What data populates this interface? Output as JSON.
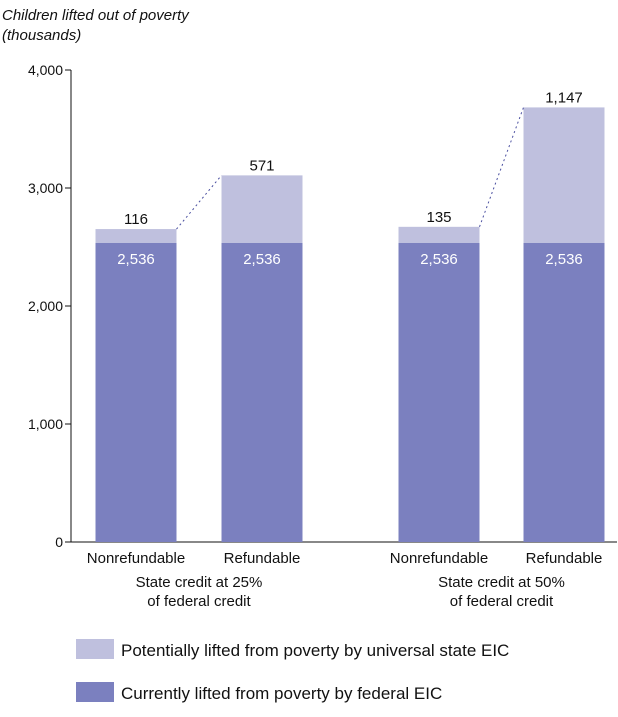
{
  "chart_data": {
    "type": "bar",
    "stacked": true,
    "ylabel": "Children lifted out of poverty\n(thousands)",
    "ylim": [
      0,
      4000
    ],
    "yticks": [
      0,
      1000,
      2000,
      3000,
      4000
    ],
    "ytick_labels": [
      "0",
      "1,000",
      "2,000",
      "3,000",
      "4,000"
    ],
    "categories": [
      "Nonrefundable",
      "Refundable",
      "Nonrefundable",
      "Refundable"
    ],
    "groups": [
      {
        "label": "State credit at 25%\nof federal credit",
        "categories": [
          0,
          1
        ]
      },
      {
        "label": "State credit at 50%\nof federal credit",
        "categories": [
          2,
          3
        ]
      }
    ],
    "series": [
      {
        "name": "Currently lifted from poverty by federal EIC",
        "values": [
          2536,
          2536,
          2536,
          2536
        ],
        "labels": [
          "2,536",
          "2,536",
          "2,536",
          "2,536"
        ]
      },
      {
        "name": "Potentially lifted from poverty by universal state EIC",
        "values": [
          116,
          571,
          135,
          1147
        ],
        "labels": [
          "116",
          "571",
          "135",
          "1,147"
        ]
      }
    ],
    "colors": {
      "federal": "#7b80bf",
      "state": "#bfc0de",
      "connector": "#4a4fa0",
      "axis": "#111111"
    },
    "grid": false,
    "legend_position": "bottom"
  }
}
